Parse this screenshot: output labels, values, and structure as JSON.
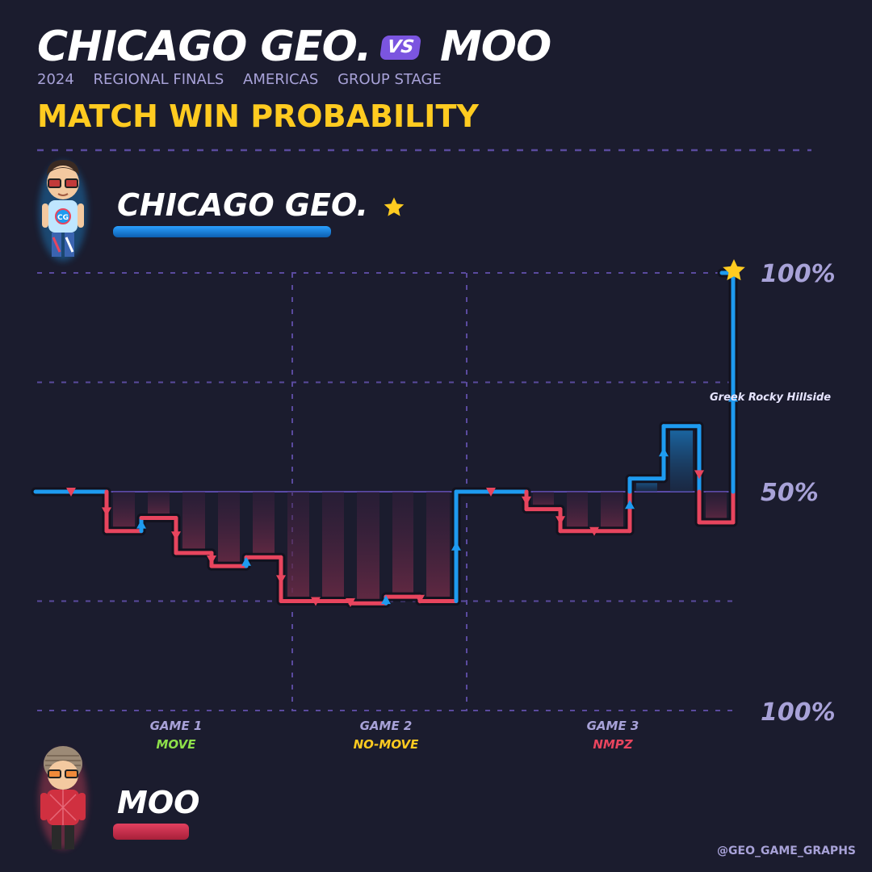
{
  "header": {
    "team_a": "CHICAGO GEO.",
    "vs": "VS",
    "team_b": "MOO",
    "subtitle": [
      "2024",
      "REGIONAL FINALS",
      "AMERICAS",
      "GROUP STAGE"
    ],
    "chart_title": "MATCH WIN PROBABILITY"
  },
  "players": {
    "a": {
      "name": "CHICAGO GEO.",
      "color": "#1e9bf0"
    },
    "b": {
      "name": "MOO",
      "color": "#e8455e"
    }
  },
  "watermark": "@GEO_GAME_GRAPHS",
  "colors": {
    "background": "#1b1c2e",
    "team_a": "#1e9bf0",
    "team_b": "#e8455e",
    "accent": "#ffcb20",
    "grid": "#5a4a9e",
    "label": "#a8a2d8"
  },
  "chart_data": {
    "type": "line",
    "title": "MATCH WIN PROBABILITY",
    "y_axis_labels": [
      "100%",
      "50%",
      "100%"
    ],
    "ylim": [
      -100,
      100
    ],
    "grid": true,
    "games": [
      {
        "label": "GAME 1",
        "mode": "MOVE",
        "mode_color": "#8ee04a"
      },
      {
        "label": "GAME 2",
        "mode": "NO-MOVE",
        "mode_color": "#ffcb20"
      },
      {
        "label": "GAME 3",
        "mode": "NMPZ",
        "mode_color": "#e8455e"
      }
    ],
    "winner": "CHICAGO GEO.",
    "annotations": [
      {
        "round": 20,
        "text": "Greek Rocky Hillside"
      }
    ],
    "series": [
      {
        "name": "CHICAGO GEO.",
        "values": [
          0,
          0,
          -18,
          -12,
          -28,
          -34,
          -30,
          -50,
          -50,
          -51,
          -48,
          -50,
          0,
          0,
          -8,
          -18,
          -18,
          6,
          30,
          -14,
          100
        ]
      }
    ]
  }
}
